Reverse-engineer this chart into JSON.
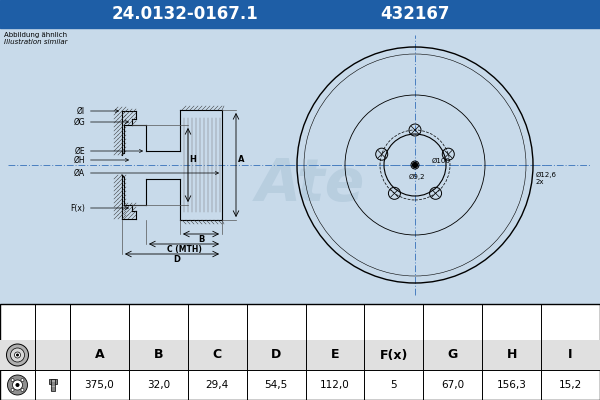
{
  "title_part": "24.0132-0167.1",
  "title_part2": "432167",
  "header_bg": "#1e5ea6",
  "header_text_color": "#ffffff",
  "body_bg": "#c8daea",
  "table_bg_header": "#e0e0e0",
  "table_bg_value": "#ffffff",
  "table_headers": [
    "A",
    "B",
    "C",
    "D",
    "E",
    "F(x)",
    "G",
    "H",
    "I"
  ],
  "table_values": [
    "375,0",
    "32,0",
    "29,4",
    "54,5",
    "112,0",
    "5",
    "67,0",
    "156,3",
    "15,2"
  ],
  "note_line1": "Abbildung ähnlich",
  "note_line2": "Illustration similar",
  "bg_color": "#c8daea",
  "line_color": "#000000",
  "center_line_color": "#4a7fc0",
  "watermark_color": "#a0bcd0"
}
